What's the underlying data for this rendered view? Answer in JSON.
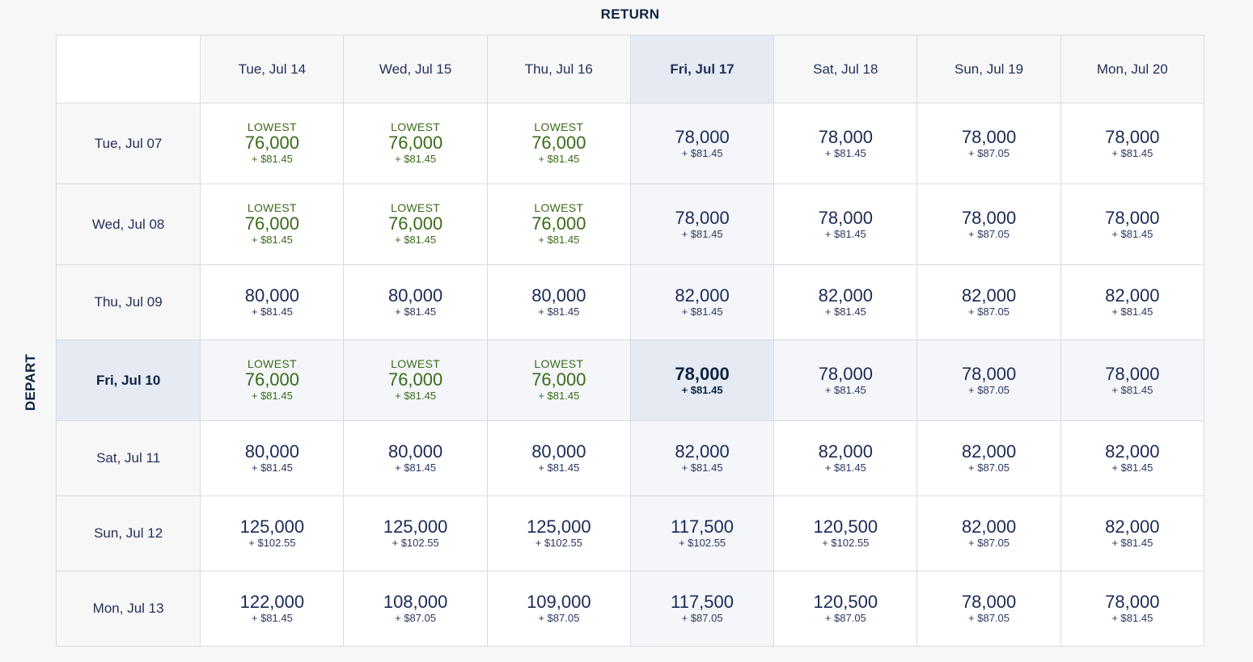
{
  "labels": {
    "return": "RETURN",
    "depart": "DEPART"
  },
  "colors": {
    "lowest": "#3a6b1a",
    "text": "#1b2a55",
    "selected_bg": "#e6ebf3",
    "tint_bg": "#f4f6fa"
  },
  "return_dates": [
    "Tue, Jul 14",
    "Wed, Jul 15",
    "Thu, Jul 16",
    "Fri, Jul 17",
    "Sat, Jul 18",
    "Sun, Jul 19",
    "Mon, Jul 20"
  ],
  "selected_return_index": 3,
  "selected_depart_index": 3,
  "rows": [
    {
      "depart": "Tue, Jul 07",
      "cells": [
        {
          "low": "LOWEST",
          "points": "76,000",
          "fee": "+ $81.45"
        },
        {
          "low": "LOWEST",
          "points": "76,000",
          "fee": "+ $81.45"
        },
        {
          "low": "LOWEST",
          "points": "76,000",
          "fee": "+ $81.45"
        },
        {
          "points": "78,000",
          "fee": "+ $81.45"
        },
        {
          "points": "78,000",
          "fee": "+ $81.45"
        },
        {
          "points": "78,000",
          "fee": "+ $87.05"
        },
        {
          "points": "78,000",
          "fee": "+ $81.45"
        }
      ]
    },
    {
      "depart": "Wed, Jul 08",
      "cells": [
        {
          "low": "LOWEST",
          "points": "76,000",
          "fee": "+ $81.45"
        },
        {
          "low": "LOWEST",
          "points": "76,000",
          "fee": "+ $81.45"
        },
        {
          "low": "LOWEST",
          "points": "76,000",
          "fee": "+ $81.45"
        },
        {
          "points": "78,000",
          "fee": "+ $81.45"
        },
        {
          "points": "78,000",
          "fee": "+ $81.45"
        },
        {
          "points": "78,000",
          "fee": "+ $87.05"
        },
        {
          "points": "78,000",
          "fee": "+ $81.45"
        }
      ]
    },
    {
      "depart": "Thu, Jul 09",
      "cells": [
        {
          "points": "80,000",
          "fee": "+ $81.45"
        },
        {
          "points": "80,000",
          "fee": "+ $81.45"
        },
        {
          "points": "80,000",
          "fee": "+ $81.45"
        },
        {
          "points": "82,000",
          "fee": "+ $81.45"
        },
        {
          "points": "82,000",
          "fee": "+ $81.45"
        },
        {
          "points": "82,000",
          "fee": "+ $87.05"
        },
        {
          "points": "82,000",
          "fee": "+ $81.45"
        }
      ]
    },
    {
      "depart": "Fri, Jul 10",
      "cells": [
        {
          "low": "LOWEST",
          "points": "76,000",
          "fee": "+ $81.45"
        },
        {
          "low": "LOWEST",
          "points": "76,000",
          "fee": "+ $81.45"
        },
        {
          "low": "LOWEST",
          "points": "76,000",
          "fee": "+ $81.45"
        },
        {
          "points": "78,000",
          "fee": "+ $81.45"
        },
        {
          "points": "78,000",
          "fee": "+ $81.45"
        },
        {
          "points": "78,000",
          "fee": "+ $87.05"
        },
        {
          "points": "78,000",
          "fee": "+ $81.45"
        }
      ]
    },
    {
      "depart": "Sat, Jul 11",
      "cells": [
        {
          "points": "80,000",
          "fee": "+ $81.45"
        },
        {
          "points": "80,000",
          "fee": "+ $81.45"
        },
        {
          "points": "80,000",
          "fee": "+ $81.45"
        },
        {
          "points": "82,000",
          "fee": "+ $81.45"
        },
        {
          "points": "82,000",
          "fee": "+ $81.45"
        },
        {
          "points": "82,000",
          "fee": "+ $87.05"
        },
        {
          "points": "82,000",
          "fee": "+ $81.45"
        }
      ]
    },
    {
      "depart": "Sun, Jul 12",
      "cells": [
        {
          "points": "125,000",
          "fee": "+ $102.55"
        },
        {
          "points": "125,000",
          "fee": "+ $102.55"
        },
        {
          "points": "125,000",
          "fee": "+ $102.55"
        },
        {
          "points": "117,500",
          "fee": "+ $102.55"
        },
        {
          "points": "120,500",
          "fee": "+ $102.55"
        },
        {
          "points": "82,000",
          "fee": "+ $87.05"
        },
        {
          "points": "82,000",
          "fee": "+ $81.45"
        }
      ]
    },
    {
      "depart": "Mon, Jul 13",
      "cells": [
        {
          "points": "122,000",
          "fee": "+ $81.45"
        },
        {
          "points": "108,000",
          "fee": "+ $87.05"
        },
        {
          "points": "109,000",
          "fee": "+ $87.05"
        },
        {
          "points": "117,500",
          "fee": "+ $87.05"
        },
        {
          "points": "120,500",
          "fee": "+ $87.05"
        },
        {
          "points": "78,000",
          "fee": "+ $87.05"
        },
        {
          "points": "78,000",
          "fee": "+ $81.45"
        }
      ]
    }
  ]
}
